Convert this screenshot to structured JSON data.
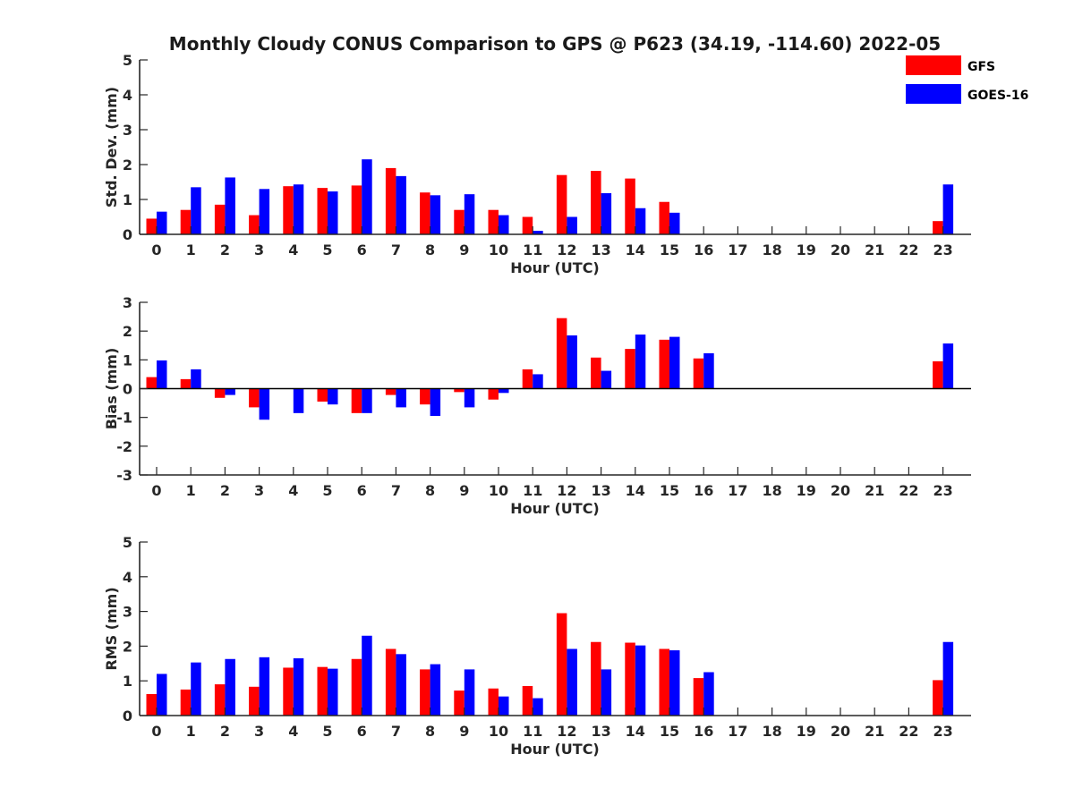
{
  "chart_data": {
    "title": "Monthly Cloudy CONUS Comparison to GPS @ P623 (34.19, -114.60) 2022-05",
    "legend": [
      {
        "name": "GFS",
        "color": "#ff0000"
      },
      {
        "name": "GOES-16",
        "color": "#0000ff"
      }
    ],
    "legend_placement": "top-right",
    "panels": [
      {
        "type": "bar",
        "xlabel": "Hour (UTC)",
        "ylabel": "Std. Dev. (mm)",
        "ylim": [
          0,
          5
        ],
        "yticks": [
          "0",
          "1",
          "2",
          "3",
          "4",
          "5"
        ],
        "categories": [
          "0",
          "1",
          "2",
          "3",
          "4",
          "5",
          "6",
          "7",
          "8",
          "9",
          "10",
          "11",
          "12",
          "13",
          "14",
          "15",
          "16",
          "17",
          "18",
          "19",
          "20",
          "21",
          "22",
          "23"
        ],
        "series": [
          {
            "name": "GFS",
            "values": [
              0.45,
              0.7,
              0.85,
              0.55,
              1.38,
              1.33,
              1.4,
              1.9,
              1.2,
              0.7,
              0.7,
              0.5,
              1.7,
              1.82,
              1.6,
              0.93,
              null,
              null,
              null,
              null,
              null,
              null,
              null,
              0.38
            ]
          },
          {
            "name": "GOES-16",
            "values": [
              0.65,
              1.35,
              1.63,
              1.3,
              1.43,
              1.23,
              2.15,
              1.67,
              1.12,
              1.15,
              0.55,
              0.1,
              0.5,
              1.18,
              0.75,
              0.62,
              null,
              null,
              null,
              null,
              null,
              null,
              null,
              1.43
            ]
          }
        ]
      },
      {
        "type": "bar",
        "xlabel": "Hour (UTC)",
        "ylabel": "Bias (mm)",
        "ylim": [
          -3,
          3
        ],
        "yticks": [
          "-3",
          "-2",
          "-1",
          "0",
          "1",
          "2",
          "3"
        ],
        "categories": [
          "0",
          "1",
          "2",
          "3",
          "4",
          "5",
          "6",
          "7",
          "8",
          "9",
          "10",
          "11",
          "12",
          "13",
          "14",
          "15",
          "16",
          "17",
          "18",
          "19",
          "20",
          "21",
          "22",
          "23"
        ],
        "series": [
          {
            "name": "GFS",
            "values": [
              0.4,
              0.33,
              -0.32,
              -0.65,
              0.0,
              -0.45,
              -0.85,
              -0.22,
              -0.55,
              -0.12,
              -0.38,
              0.67,
              2.45,
              1.08,
              1.38,
              1.7,
              1.05,
              null,
              null,
              null,
              null,
              null,
              null,
              0.95
            ]
          },
          {
            "name": "GOES-16",
            "values": [
              0.98,
              0.67,
              -0.22,
              -1.08,
              -0.85,
              -0.55,
              -0.85,
              -0.65,
              -0.95,
              -0.65,
              -0.15,
              0.5,
              1.85,
              0.62,
              1.88,
              1.8,
              1.23,
              null,
              null,
              null,
              null,
              null,
              null,
              1.57
            ]
          }
        ]
      },
      {
        "type": "bar",
        "xlabel": "Hour (UTC)",
        "ylabel": "RMS (mm)",
        "ylim": [
          0,
          5
        ],
        "yticks": [
          "0",
          "1",
          "2",
          "3",
          "4",
          "5"
        ],
        "categories": [
          "0",
          "1",
          "2",
          "3",
          "4",
          "5",
          "6",
          "7",
          "8",
          "9",
          "10",
          "11",
          "12",
          "13",
          "14",
          "15",
          "16",
          "17",
          "18",
          "19",
          "20",
          "21",
          "22",
          "23"
        ],
        "series": [
          {
            "name": "GFS",
            "values": [
              0.62,
              0.75,
              0.9,
              0.83,
              1.38,
              1.4,
              1.63,
              1.92,
              1.33,
              0.72,
              0.78,
              0.85,
              2.95,
              2.12,
              2.1,
              1.92,
              1.08,
              null,
              null,
              null,
              null,
              null,
              null,
              1.02
            ]
          },
          {
            "name": "GOES-16",
            "values": [
              1.2,
              1.53,
              1.63,
              1.68,
              1.65,
              1.35,
              2.3,
              1.77,
              1.48,
              1.33,
              0.55,
              0.5,
              1.92,
              1.33,
              2.02,
              1.88,
              1.25,
              null,
              null,
              null,
              null,
              null,
              null,
              2.12
            ]
          }
        ]
      }
    ]
  }
}
